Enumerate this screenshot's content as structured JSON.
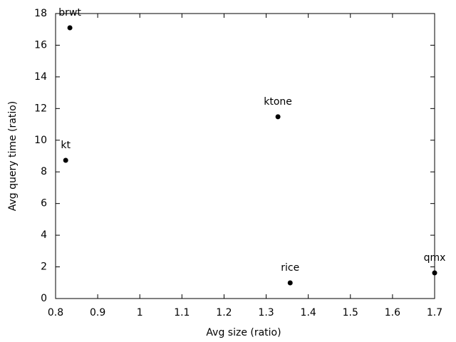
{
  "chart_data": {
    "type": "scatter",
    "x_label": "Avg size (ratio)",
    "y_label": "Avg query time (ratio)",
    "labels": [
      "brwt",
      "kt",
      "ktone",
      "rice",
      "qmx"
    ],
    "x": [
      0.834,
      0.824,
      1.328,
      1.357,
      1.7
    ],
    "values": [
      17.1,
      8.73,
      11.48,
      0.99,
      1.62
    ],
    "color": "#000000",
    "xlim": [
      0.8,
      1.7
    ],
    "xticks": [
      0.8,
      0.9,
      1,
      1.1,
      1.2,
      1.3,
      1.4,
      1.5,
      1.6,
      1.7
    ],
    "ylim": [
      0,
      18
    ],
    "yticks": [
      0,
      2,
      4,
      6,
      8,
      10,
      12,
      14,
      16,
      18
    ]
  }
}
